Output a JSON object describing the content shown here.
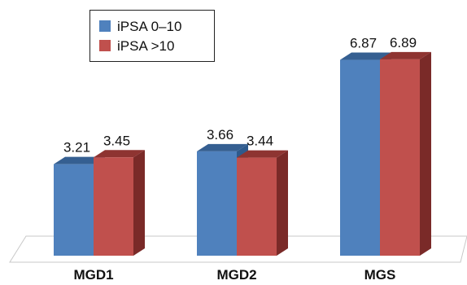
{
  "chart_data": {
    "type": "bar",
    "categories": [
      "MGD1",
      "MGD2",
      "MGS"
    ],
    "series": [
      {
        "name": "iPSA 0–10",
        "values": [
          3.21,
          3.66,
          6.87
        ],
        "color": "#4F81BD",
        "side_color": "#2E5A8C",
        "top_color": "#355F91"
      },
      {
        "name": "iPSA >10",
        "values": [
          3.45,
          3.44,
          6.89
        ],
        "color": "#C0504D",
        "side_color": "#7A2A28",
        "top_color": "#8E3431"
      }
    ],
    "data_labels": [
      [
        "3.21",
        "3.66",
        "6.87"
      ],
      [
        "3.45",
        "3.44",
        "6.89"
      ]
    ],
    "legend_position": "top-left",
    "grid": false,
    "ylim": [
      0,
      7.5
    ]
  }
}
